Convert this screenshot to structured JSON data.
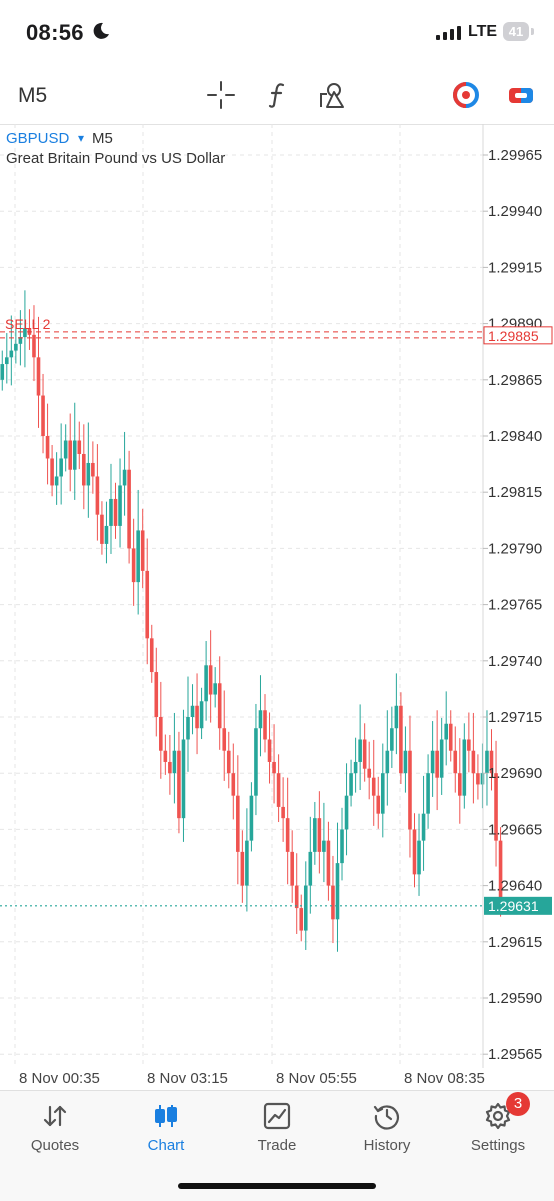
{
  "status_bar": {
    "time": "08:56",
    "network": "LTE",
    "battery": "41"
  },
  "toolbar": {
    "timeframe": "M5",
    "icons": [
      "crosshair-icon",
      "function-icon",
      "objects-icon",
      "one-click-trading-icon",
      "trade-panel-icon"
    ]
  },
  "chart": {
    "symbol": "GBPUSD",
    "symbol_caret": "▾",
    "timeframe": "M5",
    "description": "Great Britain Pound vs US Dollar",
    "price_ticks": [
      "1.29965",
      "1.29940",
      "1.29915",
      "1.29890",
      "1.29865",
      "1.29840",
      "1.29815",
      "1.29790",
      "1.29765",
      "1.29740",
      "1.29715",
      "1.29690",
      "1.29665",
      "1.29640",
      "1.29615",
      "1.29590",
      "1.29565"
    ],
    "sell_order": {
      "label": "SELL 2",
      "price": "1.29885"
    },
    "current_price": "1.29631",
    "time_labels": [
      "8 Nov 00:35",
      "8 Nov 03:15",
      "8 Nov 05:55",
      "8 Nov 08:35"
    ],
    "colors": {
      "bull": "#26a69a",
      "bear": "#ef5350",
      "order": "#e53935",
      "bid": "#26a69a",
      "grid": "#e6e6e6"
    }
  },
  "tabs": [
    {
      "label": "Quotes",
      "icon": "quotes-icon"
    },
    {
      "label": "Chart",
      "icon": "chart-icon",
      "active": true
    },
    {
      "label": "Trade",
      "icon": "trade-icon"
    },
    {
      "label": "History",
      "icon": "history-icon"
    },
    {
      "label": "Settings",
      "icon": "settings-icon",
      "badge": "3"
    }
  ]
}
